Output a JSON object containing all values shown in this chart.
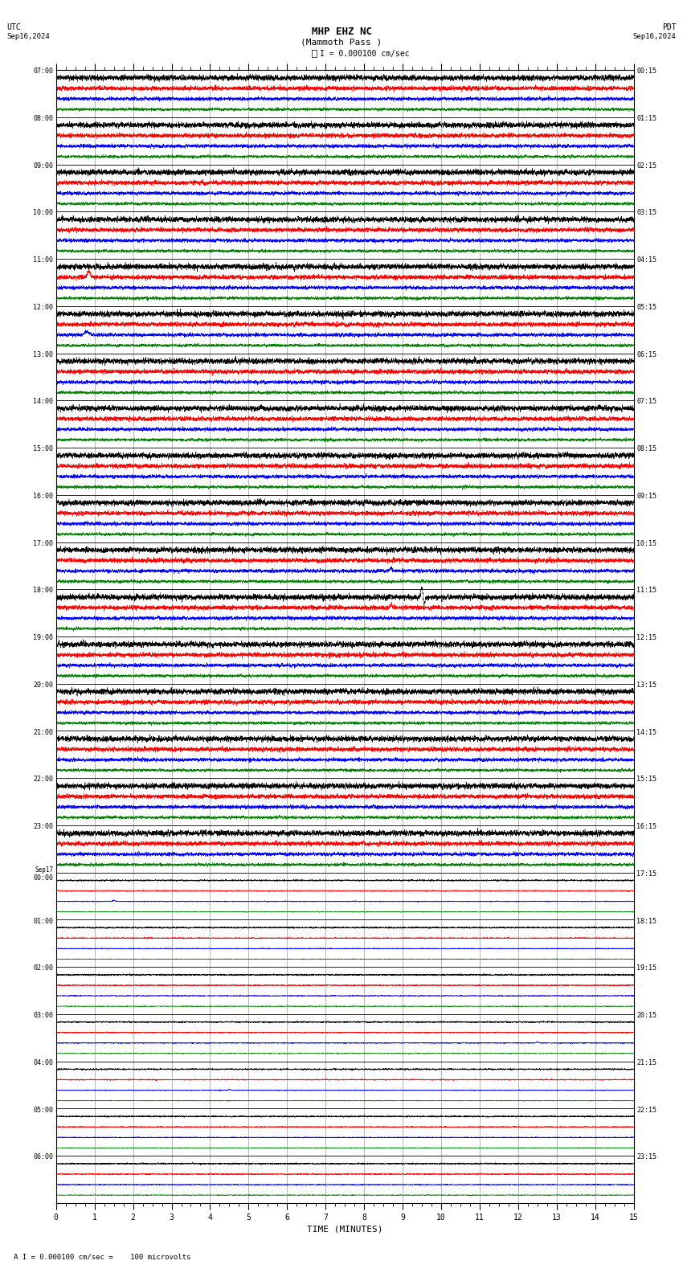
{
  "title_line1": "MHP EHZ NC",
  "title_line2": "(Mammoth Pass )",
  "scale_text": "I = 0.000100 cm/sec",
  "bottom_text": "A I = 0.000100 cm/sec =    100 microvolts",
  "utc_label": "UTC",
  "pdt_label": "PDT",
  "date_left": "Sep16,2024",
  "date_right": "Sep16,2024",
  "xlabel": "TIME (MINUTES)",
  "bg_color": "#ffffff",
  "trace_colors": [
    "black",
    "red",
    "blue",
    "green"
  ],
  "left_times": [
    "07:00",
    "08:00",
    "09:00",
    "10:00",
    "11:00",
    "12:00",
    "13:00",
    "14:00",
    "15:00",
    "16:00",
    "17:00",
    "18:00",
    "19:00",
    "20:00",
    "21:00",
    "22:00",
    "23:00",
    "Sep17\n00:00",
    "01:00",
    "02:00",
    "03:00",
    "04:00",
    "05:00",
    "06:00"
  ],
  "right_times": [
    "00:15",
    "01:15",
    "02:15",
    "03:15",
    "04:15",
    "05:15",
    "06:15",
    "07:15",
    "08:15",
    "09:15",
    "10:15",
    "11:15",
    "12:15",
    "13:15",
    "14:15",
    "15:15",
    "16:15",
    "17:15",
    "18:15",
    "19:15",
    "20:15",
    "21:15",
    "22:15",
    "23:15"
  ],
  "n_rows": 24,
  "traces_per_row": 4,
  "x_min": 0,
  "x_max": 15,
  "font_size_title": 9,
  "font_size_labels": 6,
  "font_size_ticks": 7
}
